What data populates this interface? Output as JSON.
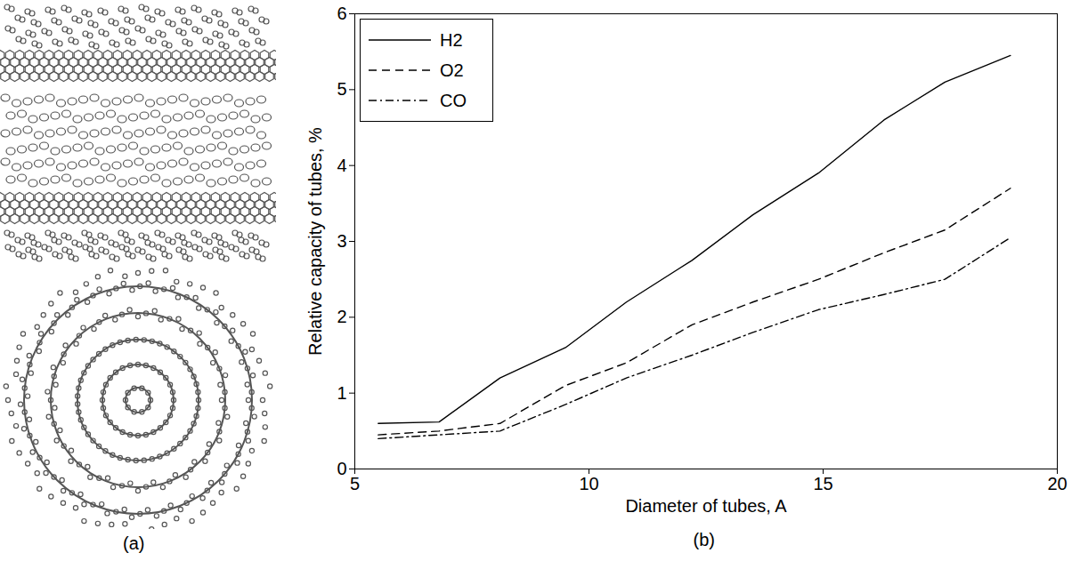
{
  "figure_a": {
    "label": "(a)"
  },
  "chart_data": {
    "type": "line",
    "panel_label": "(b)",
    "x_label": "Diameter of tubes, A",
    "y_label": "Relative capacity of tubes, %",
    "x": [
      5.5,
      6.8,
      8.1,
      9.5,
      10.8,
      12.2,
      13.5,
      14.9,
      16.3,
      17.6,
      19.0
    ],
    "series": [
      {
        "name": "H2",
        "color": "#000000",
        "line_style": "solid",
        "values": [
          0.6,
          0.62,
          1.2,
          1.6,
          2.2,
          2.75,
          3.35,
          3.9,
          4.6,
          5.1,
          5.45
        ]
      },
      {
        "name": "O2",
        "color": "#000000",
        "line_style": "dashed",
        "values": [
          0.45,
          0.5,
          0.6,
          1.1,
          1.4,
          1.9,
          2.2,
          2.5,
          2.85,
          3.15,
          3.7
        ]
      },
      {
        "name": "CO",
        "color": "#000000",
        "line_style": "dashdot",
        "values": [
          0.4,
          0.45,
          0.5,
          0.85,
          1.2,
          1.5,
          1.8,
          2.1,
          2.3,
          2.5,
          3.05
        ]
      }
    ],
    "xlim": [
      5,
      20
    ],
    "xticks": [
      5,
      10,
      15,
      20
    ],
    "ylim": [
      0,
      6
    ],
    "yticks": [
      0,
      1,
      2,
      3,
      4,
      5,
      6
    ],
    "grid": false,
    "legend": "top-left"
  }
}
